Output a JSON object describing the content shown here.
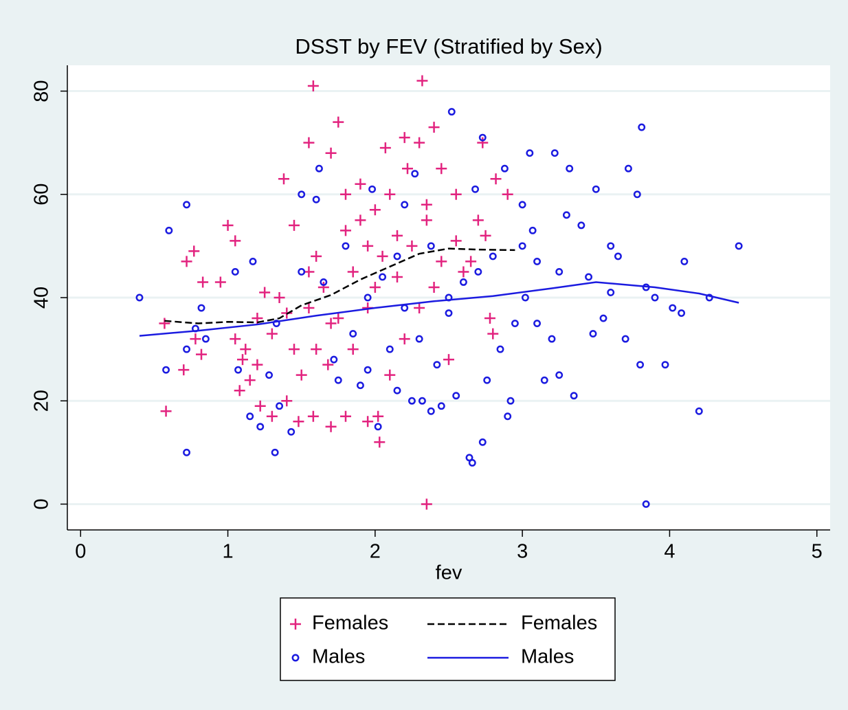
{
  "chart_data": {
    "type": "scatter",
    "title": "DSST by FEV (Stratified by Sex)",
    "x_label": "fev",
    "xlim": [
      -0.09,
      5.09
    ],
    "ylim": [
      -5,
      85
    ],
    "xticks": [
      0,
      1,
      2,
      3,
      4,
      5
    ],
    "yticks": [
      0,
      20,
      40,
      60,
      80
    ],
    "grid": true,
    "legend": "bottom",
    "series": [
      {
        "name": "Females",
        "type": "scatter",
        "marker": "plus",
        "color": "#e2237f",
        "x": [
          1.58,
          2.32,
          2.35,
          0.58,
          1.75,
          1.55,
          2.07,
          2.4,
          2.2,
          2.3,
          0.7,
          0.57,
          0.72,
          0.77,
          0.83,
          0.95,
          1.0,
          1.05,
          1.08,
          1.12,
          1.2,
          1.38,
          1.45,
          1.6,
          1.7,
          1.8,
          1.9,
          2.0,
          2.1,
          2.22,
          2.35,
          2.45,
          2.55,
          2.7,
          2.73,
          2.82,
          2.9,
          2.03,
          2.02,
          1.95,
          1.8,
          1.7,
          1.58,
          1.48,
          1.4,
          1.3,
          1.22,
          1.15,
          1.1,
          1.3,
          1.45,
          1.55,
          1.65,
          1.75,
          1.85,
          1.95,
          2.05,
          2.15,
          2.25,
          2.4,
          2.5,
          2.6,
          2.75,
          2.8,
          2.78,
          1.35,
          1.5,
          1.6,
          1.7,
          1.85,
          1.95,
          2.1,
          2.2,
          2.3,
          2.45,
          1.25,
          1.05,
          0.82,
          0.78,
          1.2,
          1.4,
          1.55,
          2.0,
          2.15,
          1.9,
          2.55,
          2.65,
          1.68,
          1.8,
          2.35
        ],
        "values": [
          81,
          82,
          0,
          18,
          74,
          70,
          69,
          73,
          71,
          70,
          26,
          35,
          47,
          49,
          43,
          43,
          54,
          51,
          22,
          30,
          36,
          63,
          54,
          48,
          68,
          60,
          62,
          57,
          60,
          65,
          58,
          65,
          60,
          55,
          70,
          63,
          60,
          12,
          17,
          16,
          17,
          15,
          17,
          16,
          20,
          17,
          19,
          24,
          28,
          33,
          30,
          38,
          42,
          36,
          45,
          50,
          48,
          44,
          50,
          42,
          28,
          45,
          52,
          33,
          36,
          40,
          25,
          30,
          35,
          30,
          38,
          25,
          32,
          38,
          47,
          41,
          32,
          29,
          32,
          27,
          37,
          45,
          42,
          52,
          55,
          51,
          47,
          27,
          53,
          55
        ]
      },
      {
        "name": "Females",
        "type": "line",
        "dash": true,
        "color": "#000000",
        "x": [
          0.57,
          0.8,
          1.0,
          1.2,
          1.35,
          1.5,
          1.7,
          1.9,
          2.1,
          2.3,
          2.5,
          2.7,
          2.95
        ],
        "values": [
          35.5,
          35,
          35.3,
          35.2,
          36,
          38.5,
          40.5,
          43.5,
          46,
          48.5,
          49.5,
          49.3,
          49.2
        ]
      },
      {
        "name": "Males",
        "type": "scatter",
        "marker": "circle",
        "color": "#1b1be0",
        "x": [
          0.4,
          0.58,
          0.6,
          0.72,
          0.72,
          0.72,
          0.78,
          0.82,
          0.85,
          1.05,
          1.07,
          1.15,
          1.17,
          1.22,
          1.28,
          1.32,
          1.33,
          1.35,
          1.43,
          1.5,
          1.5,
          1.6,
          1.62,
          1.65,
          1.72,
          1.75,
          1.8,
          1.85,
          1.9,
          1.95,
          1.98,
          2.02,
          2.05,
          2.1,
          2.15,
          2.15,
          2.2,
          2.25,
          2.27,
          2.3,
          2.32,
          2.38,
          2.38,
          2.42,
          2.45,
          2.5,
          2.52,
          2.55,
          2.6,
          2.64,
          2.66,
          2.68,
          2.7,
          2.73,
          2.73,
          2.76,
          2.8,
          2.85,
          2.88,
          2.9,
          2.92,
          2.95,
          3.0,
          3.02,
          3.05,
          3.07,
          3.1,
          3.15,
          3.2,
          3.22,
          3.25,
          3.3,
          3.32,
          3.35,
          3.4,
          3.48,
          3.5,
          3.55,
          3.6,
          3.7,
          3.72,
          3.8,
          3.81,
          3.84,
          3.84,
          3.9,
          3.97,
          4.02,
          4.08,
          4.1,
          4.2,
          4.27,
          4.47,
          3.78,
          3.45,
          3.6,
          3.0,
          2.5,
          2.2,
          1.95,
          3.1,
          3.25,
          3.65
        ],
        "values": [
          40,
          26,
          53,
          10,
          30,
          58,
          34,
          38,
          32,
          45,
          26,
          17,
          47,
          15,
          25,
          10,
          35,
          19,
          14,
          45,
          60,
          59,
          65,
          43,
          28,
          24,
          50,
          33,
          23,
          26,
          61,
          15,
          44,
          30,
          48,
          22,
          58,
          20,
          64,
          32,
          20,
          18,
          50,
          27,
          19,
          37,
          76,
          21,
          43,
          9,
          8,
          61,
          45,
          71,
          12,
          24,
          48,
          30,
          65,
          17,
          20,
          35,
          58,
          40,
          68,
          53,
          35,
          24,
          32,
          68,
          25,
          56,
          65,
          21,
          54,
          33,
          61,
          36,
          50,
          32,
          65,
          27,
          73,
          0,
          42,
          40,
          27,
          38,
          37,
          47,
          18,
          40,
          50,
          60,
          44,
          41,
          50,
          40,
          38,
          40,
          47,
          45,
          48
        ]
      },
      {
        "name": "Males",
        "type": "line",
        "color": "#1b1be0",
        "x": [
          0.4,
          0.8,
          1.2,
          1.6,
          2.0,
          2.4,
          2.8,
          3.2,
          3.5,
          3.9,
          4.2,
          4.47
        ],
        "values": [
          32.6,
          33.6,
          34.8,
          36.5,
          38,
          39.3,
          40.3,
          41.8,
          43,
          42,
          40.8,
          39
        ]
      }
    ]
  }
}
